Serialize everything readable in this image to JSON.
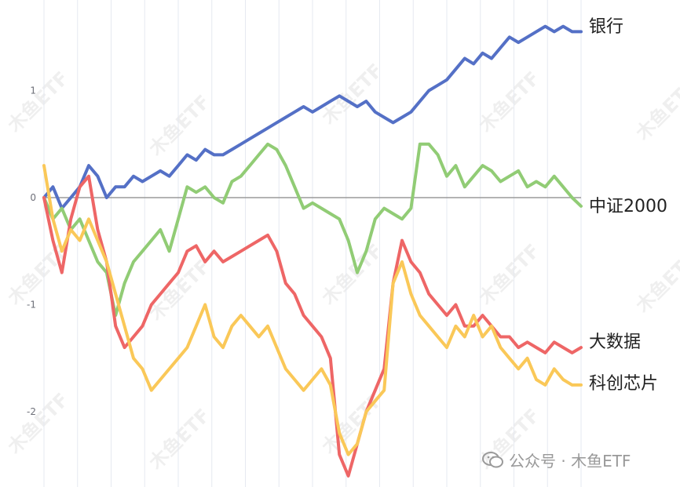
{
  "chart_data": {
    "type": "line",
    "title": "",
    "xlabel": "",
    "ylabel": "",
    "ylim": [
      -2.6,
      1.8
    ],
    "yticks": [
      -2,
      -1,
      0,
      1
    ],
    "grid": true,
    "legend": "end-of-line labels",
    "x": [
      0,
      3,
      6,
      9,
      12,
      15,
      18,
      21,
      24,
      27,
      30,
      33,
      36,
      39,
      42,
      45,
      48,
      51,
      54,
      57,
      60,
      63,
      66,
      69,
      72,
      75,
      78,
      81,
      84,
      87,
      90,
      93,
      96,
      99,
      102,
      105,
      108,
      111,
      114,
      117,
      120,
      123,
      126,
      129,
      132,
      135,
      138,
      141,
      144,
      147,
      150,
      153,
      156,
      159,
      162,
      165,
      168,
      171,
      174,
      177,
      180
    ],
    "series": [
      {
        "name": "银行",
        "color": "#5470c6",
        "values": [
          0,
          0.1,
          -0.1,
          0,
          0.1,
          0.3,
          0.2,
          0,
          0.1,
          0.1,
          0.2,
          0.15,
          0.2,
          0.25,
          0.2,
          0.3,
          0.4,
          0.35,
          0.45,
          0.4,
          0.4,
          0.45,
          0.5,
          0.55,
          0.6,
          0.65,
          0.7,
          0.75,
          0.8,
          0.85,
          0.8,
          0.85,
          0.9,
          0.95,
          0.9,
          0.85,
          0.9,
          0.8,
          0.75,
          0.7,
          0.75,
          0.8,
          0.9,
          1.0,
          1.05,
          1.1,
          1.2,
          1.3,
          1.25,
          1.35,
          1.3,
          1.4,
          1.5,
          1.45,
          1.5,
          1.55,
          1.6,
          1.55,
          1.6,
          1.55,
          1.55
        ]
      },
      {
        "name": "中证2000",
        "color": "#91cc75",
        "values": [
          0,
          -0.2,
          -0.1,
          -0.3,
          -0.2,
          -0.4,
          -0.6,
          -0.7,
          -1.1,
          -0.8,
          -0.6,
          -0.5,
          -0.4,
          -0.3,
          -0.5,
          -0.2,
          0.1,
          0.05,
          0.1,
          0,
          -0.05,
          0.15,
          0.2,
          0.3,
          0.4,
          0.5,
          0.45,
          0.3,
          0.1,
          -0.1,
          -0.05,
          -0.1,
          -0.15,
          -0.2,
          -0.4,
          -0.7,
          -0.5,
          -0.2,
          -0.1,
          -0.15,
          -0.2,
          -0.1,
          0.5,
          0.5,
          0.4,
          0.2,
          0.3,
          0.1,
          0.2,
          0.3,
          0.25,
          0.15,
          0.2,
          0.25,
          0.1,
          0.15,
          0.1,
          0.2,
          0.1,
          0,
          -0.08
        ]
      },
      {
        "name": "大数据",
        "color": "#ee6666",
        "values": [
          0,
          -0.4,
          -0.7,
          -0.2,
          0.1,
          0.2,
          -0.3,
          -0.6,
          -1.2,
          -1.4,
          -1.3,
          -1.2,
          -1.0,
          -0.9,
          -0.8,
          -0.7,
          -0.5,
          -0.45,
          -0.6,
          -0.5,
          -0.6,
          -0.55,
          -0.5,
          -0.45,
          -0.4,
          -0.35,
          -0.5,
          -0.8,
          -0.9,
          -1.1,
          -1.2,
          -1.3,
          -1.5,
          -2.4,
          -2.6,
          -2.3,
          -2.0,
          -1.8,
          -1.6,
          -0.8,
          -0.4,
          -0.6,
          -0.7,
          -0.9,
          -1.0,
          -1.1,
          -1.0,
          -1.2,
          -1.2,
          -1.1,
          -1.2,
          -1.3,
          -1.3,
          -1.4,
          -1.35,
          -1.4,
          -1.45,
          -1.35,
          -1.4,
          -1.45,
          -1.4
        ]
      },
      {
        "name": "科创芯片",
        "color": "#fac858",
        "values": [
          0.3,
          -0.2,
          -0.5,
          -0.3,
          -0.4,
          -0.2,
          -0.4,
          -0.6,
          -0.9,
          -1.2,
          -1.5,
          -1.6,
          -1.8,
          -1.7,
          -1.6,
          -1.5,
          -1.4,
          -1.2,
          -1.0,
          -1.3,
          -1.4,
          -1.2,
          -1.1,
          -1.2,
          -1.3,
          -1.2,
          -1.4,
          -1.6,
          -1.7,
          -1.8,
          -1.7,
          -1.6,
          -1.75,
          -2.2,
          -2.4,
          -2.3,
          -2.0,
          -1.9,
          -1.8,
          -0.8,
          -0.6,
          -0.9,
          -1.1,
          -1.2,
          -1.3,
          -1.4,
          -1.2,
          -1.3,
          -1.1,
          -1.3,
          -1.2,
          -1.4,
          -1.5,
          -1.6,
          -1.5,
          -1.7,
          -1.75,
          -1.6,
          -1.7,
          -1.75,
          -1.75
        ]
      }
    ]
  },
  "watermark": "木鱼ETF",
  "credit": {
    "icon": "wechat-icon",
    "text": "公众号 · 木鱼ETF"
  }
}
